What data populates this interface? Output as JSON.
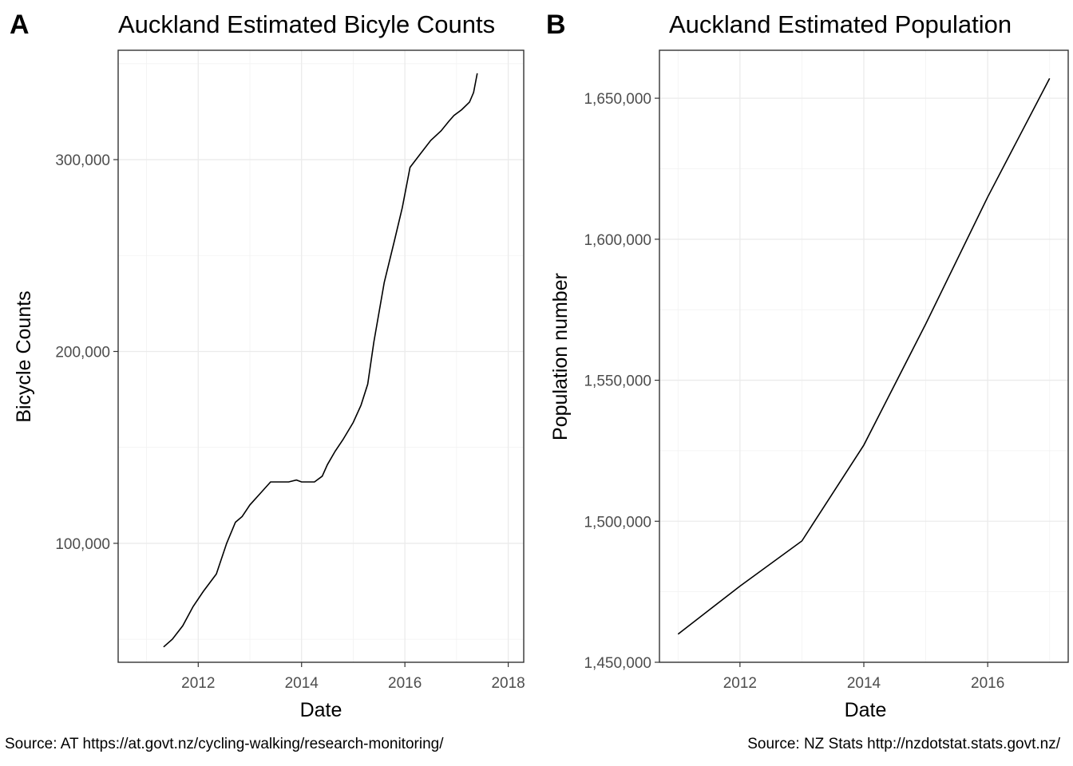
{
  "chart_data": [
    {
      "panel": "A",
      "type": "line",
      "title": "Auckland Estimated Bicyle Counts",
      "xlabel": "Date",
      "ylabel": "Bicycle Counts",
      "caption": "Source: AT https://at.govt.nz/cycling-walking/research-monitoring/",
      "x_ticks": [
        2012,
        2014,
        2016,
        2018
      ],
      "y_ticks": [
        100000,
        200000,
        300000
      ],
      "y_tick_labels": [
        "100,000",
        "200,000",
        "300,000"
      ],
      "x_tick_labels": [
        "2012",
        "2014",
        "2016",
        "2018"
      ],
      "xlim": [
        2010.45,
        2018.3
      ],
      "ylim": [
        38000,
        357000
      ],
      "grid": true,
      "series": [
        {
          "x": [
            2011.33,
            2011.5,
            2011.7,
            2011.9,
            2012.1,
            2012.35,
            2012.55,
            2012.72,
            2012.85,
            2013.0,
            2013.2,
            2013.4,
            2013.55,
            2013.75,
            2013.9,
            2014.0,
            2014.1,
            2014.25,
            2014.4,
            2014.5,
            2014.65,
            2014.8,
            2015.0,
            2015.15,
            2015.28,
            2015.4,
            2015.6,
            2015.8,
            2015.95,
            2016.1,
            2016.3,
            2016.5,
            2016.7,
            2016.85,
            2016.95,
            2017.1,
            2017.25,
            2017.33,
            2017.4
          ],
          "y": [
            46000,
            50000,
            57000,
            67000,
            75000,
            84000,
            100000,
            111000,
            114000,
            120000,
            126000,
            132000,
            132000,
            132000,
            133000,
            132000,
            132000,
            132000,
            135000,
            141000,
            148000,
            154000,
            163000,
            172000,
            183000,
            205000,
            236000,
            258000,
            275000,
            296000,
            303000,
            310000,
            315000,
            320000,
            323000,
            326000,
            330000,
            335000,
            345000
          ]
        }
      ]
    },
    {
      "panel": "B",
      "type": "line",
      "title": "Auckland Estimated Population",
      "xlabel": "Date",
      "ylabel": "Population number",
      "caption": "Source: NZ Stats http://nzdotstat.stats.govt.nz/",
      "x_ticks": [
        2012,
        2014,
        2016
      ],
      "x_tick_labels": [
        "2012",
        "2014",
        "2016"
      ],
      "y_ticks": [
        1450000,
        1500000,
        1550000,
        1600000,
        1650000
      ],
      "y_tick_labels": [
        "1,450,000",
        "1,500,000",
        "1,550,000",
        "1,600,000",
        "1,650,000"
      ],
      "xlim": [
        2010.7,
        2017.3
      ],
      "ylim": [
        1450000,
        1667000
      ],
      "grid": true,
      "series": [
        {
          "x": [
            2011,
            2012,
            2013,
            2014,
            2015,
            2016,
            2017
          ],
          "y": [
            1460000,
            1477000,
            1493000,
            1527000,
            1570000,
            1615000,
            1657000
          ]
        }
      ]
    }
  ]
}
